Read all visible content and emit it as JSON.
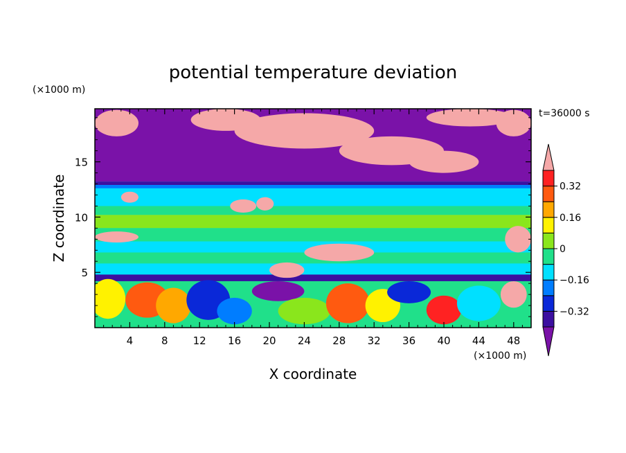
{
  "chart_data": {
    "type": "heatmap",
    "title": "potential temperature deviation",
    "xlabel": "X coordinate",
    "ylabel": "Z coordinate",
    "x_unit": "(×1000 m)",
    "y_unit": "(×1000 m)",
    "time_label": "t=36000 s",
    "xlim": [
      0,
      50
    ],
    "ylim": [
      0,
      19.8
    ],
    "x_ticks": [
      4,
      8,
      12,
      16,
      20,
      24,
      28,
      32,
      36,
      40,
      44,
      48
    ],
    "y_ticks": [
      5,
      10,
      15
    ],
    "colorbar": {
      "levels": [
        -0.4,
        -0.32,
        -0.24,
        -0.16,
        -0.08,
        0,
        0.08,
        0.16,
        0.24,
        0.32,
        0.4
      ],
      "labels": [
        "0.32",
        "0.16",
        "0",
        "−0.16",
        "−0.32"
      ],
      "label_values": [
        0.32,
        0.16,
        0,
        -0.16,
        -0.32
      ],
      "colors": [
        "#7a12a8",
        "#3c0fa0",
        "#0a28d8",
        "#007dff",
        "#00e0ff",
        "#20e08a",
        "#8ae61c",
        "#fff200",
        "#ffa800",
        "#ff5a10",
        "#ff2222",
        "#f5a8a8"
      ],
      "extend": "both"
    },
    "bands": [
      {
        "z": [
          13.2,
          19.8
        ],
        "value": -0.45
      },
      {
        "z": [
          12.9,
          13.2
        ],
        "value": -0.36
      },
      {
        "z": [
          12.6,
          12.9
        ],
        "value": -0.2
      },
      {
        "z": [
          11.0,
          12.6
        ],
        "value": -0.12
      },
      {
        "z": [
          10.2,
          11.0
        ],
        "value": -0.04
      },
      {
        "z": [
          9.0,
          10.2
        ],
        "value": 0.04
      },
      {
        "z": [
          7.8,
          9.0
        ],
        "value": -0.04
      },
      {
        "z": [
          6.8,
          7.8
        ],
        "value": -0.12
      },
      {
        "z": [
          5.8,
          6.8
        ],
        "value": -0.04
      },
      {
        "z": [
          4.8,
          5.8
        ],
        "value": -0.12
      },
      {
        "z": [
          4.2,
          4.8
        ],
        "value": -0.36
      }
    ],
    "pockets": [
      {
        "x": 2.5,
        "z": 18.5,
        "rx": 2.5,
        "rz": 1.2,
        "value": 0.45
      },
      {
        "x": 15,
        "z": 18.8,
        "rx": 4,
        "rz": 1.0,
        "value": 0.45
      },
      {
        "x": 24,
        "z": 17.8,
        "rx": 8,
        "rz": 1.6,
        "value": 0.45
      },
      {
        "x": 34,
        "z": 16.0,
        "rx": 6,
        "rz": 1.3,
        "value": 0.45
      },
      {
        "x": 40,
        "z": 15.0,
        "rx": 4,
        "rz": 1.0,
        "value": 0.45
      },
      {
        "x": 43,
        "z": 19.0,
        "rx": 5,
        "rz": 0.8,
        "value": 0.45
      },
      {
        "x": 48,
        "z": 18.5,
        "rx": 2,
        "rz": 1.2,
        "value": 0.45
      },
      {
        "x": 17,
        "z": 11.0,
        "rx": 1.5,
        "rz": 0.6,
        "value": 0.45
      },
      {
        "x": 19.5,
        "z": 11.2,
        "rx": 1.0,
        "rz": 0.6,
        "value": 0.45
      },
      {
        "x": 2.5,
        "z": 8.2,
        "rx": 2.5,
        "rz": 0.5,
        "value": 0.45
      },
      {
        "x": 28,
        "z": 6.8,
        "rx": 4,
        "rz": 0.8,
        "value": 0.45
      },
      {
        "x": 22,
        "z": 5.2,
        "rx": 2,
        "rz": 0.7,
        "value": 0.45
      },
      {
        "x": 48.5,
        "z": 8.0,
        "rx": 1.5,
        "rz": 1.2,
        "value": 0.45
      },
      {
        "x": 4,
        "z": 11.8,
        "rx": 1.0,
        "rz": 0.5,
        "value": 0.45
      },
      {
        "x": 1.5,
        "z": 2.6,
        "rx": 2,
        "rz": 1.8,
        "value": 0.1
      },
      {
        "x": 6,
        "z": 2.5,
        "rx": 2.5,
        "rz": 1.6,
        "value": 0.3
      },
      {
        "x": 9,
        "z": 2.0,
        "rx": 2,
        "rz": 1.6,
        "value": 0.2
      },
      {
        "x": 13,
        "z": 2.5,
        "rx": 2.5,
        "rz": 1.8,
        "value": -0.32
      },
      {
        "x": 16,
        "z": 1.5,
        "rx": 2,
        "rz": 1.2,
        "value": -0.2
      },
      {
        "x": 21,
        "z": 3.3,
        "rx": 3,
        "rz": 0.9,
        "value": -0.45
      },
      {
        "x": 24,
        "z": 1.5,
        "rx": 3,
        "rz": 1.2,
        "value": 0.05
      },
      {
        "x": 29,
        "z": 2.2,
        "rx": 2.5,
        "rz": 1.8,
        "value": 0.3
      },
      {
        "x": 33,
        "z": 2.0,
        "rx": 2,
        "rz": 1.5,
        "value": 0.12
      },
      {
        "x": 36,
        "z": 3.2,
        "rx": 2.5,
        "rz": 1.0,
        "value": -0.3
      },
      {
        "x": 40,
        "z": 1.6,
        "rx": 2,
        "rz": 1.3,
        "value": 0.34
      },
      {
        "x": 44,
        "z": 2.2,
        "rx": 2.5,
        "rz": 1.6,
        "value": -0.12
      },
      {
        "x": 48,
        "z": 3.0,
        "rx": 1.5,
        "rz": 1.2,
        "value": 0.45
      }
    ]
  }
}
